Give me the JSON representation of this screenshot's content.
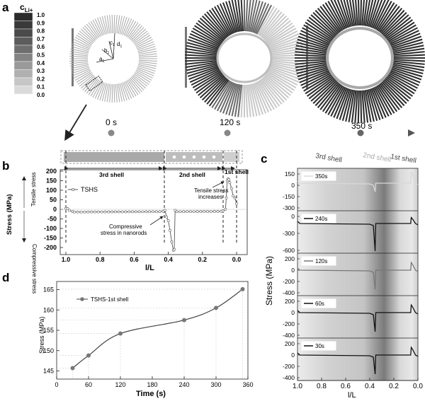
{
  "panel_labels": {
    "a": "a",
    "b": "b",
    "c": "c",
    "d": "d"
  },
  "colorbar": {
    "title_main": "c",
    "title_sub": "Li+",
    "ticks": [
      "1.0",
      "0.9",
      "0.8",
      "0.7",
      "0.6",
      "0.5",
      "0.4",
      "0.3",
      "0.2",
      "0.1",
      "0.0"
    ]
  },
  "schematic": {
    "labels": {
      "a": "a",
      "b": "b",
      "c": "c",
      "d": "d",
      "sub": "1"
    },
    "times": [
      "0 s",
      "120 s",
      "350 s"
    ]
  },
  "panel_b": {
    "regions": [
      "3rd shell",
      "2nd shell",
      "1st shell"
    ],
    "ylabel": "Stress (MPa)",
    "xlabel": "l/L",
    "tensile": "Tensile stress",
    "compressive": "Compressive stress",
    "legend": "TSHS",
    "annotation_tensile": [
      "Tensile stress",
      "increases"
    ],
    "annotation_comp": [
      "Compressive",
      "stress in nanorods"
    ],
    "yticks": [
      "200",
      "150",
      "100",
      "50",
      "0",
      "-50",
      "-100",
      "-150",
      "-200"
    ],
    "xticks": [
      "1.0",
      "0.8",
      "0.6",
      "0.4",
      "0.2",
      "0.0"
    ]
  },
  "panel_c": {
    "regions": [
      "3rd shell",
      "2nd shell",
      "1st shell"
    ],
    "ylabel": "Stress (MPa)",
    "xlabel": "l/L",
    "xticks": [
      "1.0",
      "0.8",
      "0.6",
      "0.4",
      "0.2",
      "0.0"
    ],
    "subplots": [
      {
        "label": "350s",
        "yticks": [
          "150",
          "0",
          "-150",
          "-300"
        ]
      },
      {
        "label": "240s",
        "yticks": [
          "0",
          "-300",
          "-600"
        ]
      },
      {
        "label": "120s",
        "yticks": [
          "200",
          "0",
          "-200",
          "-400"
        ]
      },
      {
        "label": "60s",
        "yticks": [
          "200",
          "0",
          "-200",
          "-400"
        ]
      },
      {
        "label": "30s",
        "yticks": [
          "200",
          "0",
          "-200",
          "-400"
        ]
      }
    ]
  },
  "chart_data": {
    "type": "line",
    "title": "",
    "xlabel": "Time (s)",
    "ylabel": "Stress (MPa)",
    "legend": "TSHS-1st shell",
    "x": [
      30,
      60,
      120,
      240,
      300,
      350
    ],
    "y": [
      145.7,
      148.8,
      154.2,
      157.5,
      160.5,
      165.1
    ],
    "xticks": [
      "0",
      "60",
      "120",
      "180",
      "240",
      "300",
      "360"
    ],
    "yticks": [
      "145",
      "150",
      "155",
      "160",
      "165"
    ],
    "xlim": [
      0,
      360
    ],
    "ylim": [
      143,
      167
    ],
    "grid": true,
    "legend_position": "top-left"
  }
}
